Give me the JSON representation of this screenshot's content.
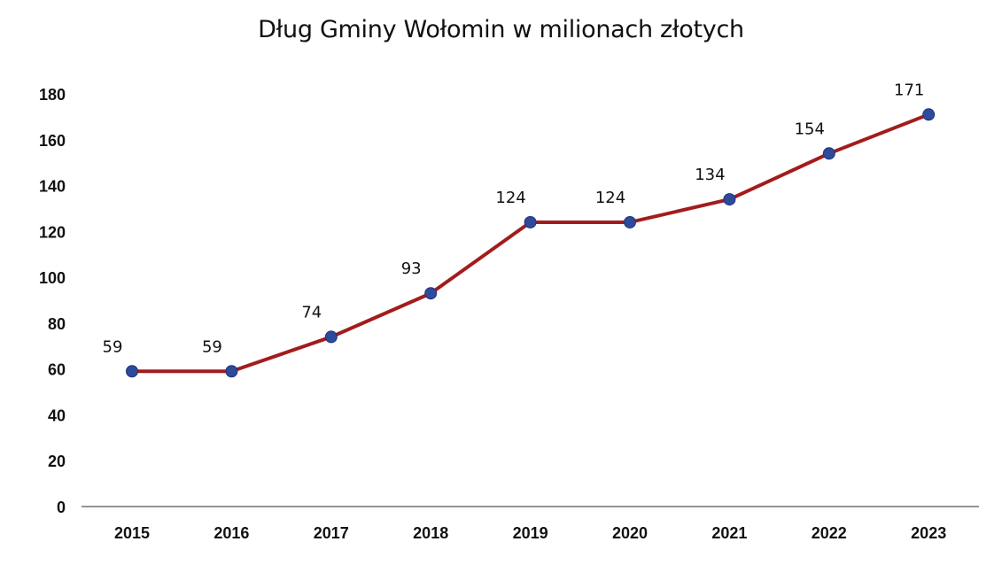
{
  "chart_data": {
    "type": "line",
    "title": "Dług Gminy Wołomin w milionach złotych",
    "xlabel": "",
    "ylabel": "",
    "x": [
      "2015",
      "2016",
      "2017",
      "2018",
      "2019",
      "2020",
      "2021",
      "2022",
      "2023"
    ],
    "series": [
      {
        "values": [
          59,
          59,
          74,
          93,
          124,
          124,
          134,
          154,
          171
        ],
        "data_labels": [
          "59",
          "59",
          "74",
          "93",
          "124",
          "124",
          "134",
          "154",
          "171"
        ]
      }
    ],
    "ylim": [
      0,
      180
    ],
    "y_ticks": [
      "0",
      "20",
      "40",
      "60",
      "80",
      "100",
      "120",
      "140",
      "160",
      "180"
    ],
    "grid": false,
    "legend": "none",
    "line_color": "#a31c1c",
    "marker_color": "#2e4a9a"
  }
}
